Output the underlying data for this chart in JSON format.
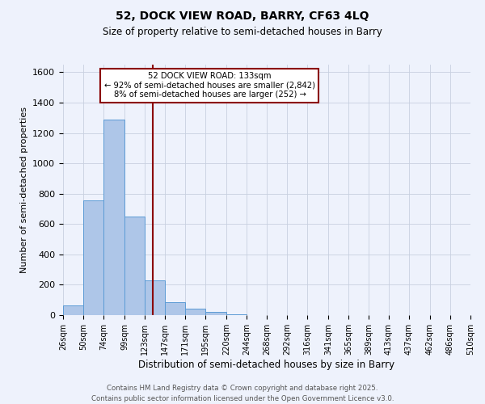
{
  "title": "52, DOCK VIEW ROAD, BARRY, CF63 4LQ",
  "subtitle": "Size of property relative to semi-detached houses in Barry",
  "xlabel": "Distribution of semi-detached houses by size in Barry",
  "ylabel": "Number of semi-detached properties",
  "property_size": 133,
  "property_label": "52 DOCK VIEW ROAD: 133sqm",
  "pct_smaller": 92,
  "count_smaller": 2842,
  "pct_larger": 8,
  "count_larger": 252,
  "bin_edges": [
    26,
    50,
    74,
    99,
    123,
    147,
    171,
    195,
    220,
    244,
    268,
    292,
    316,
    341,
    365,
    389,
    413,
    437,
    462,
    486,
    510
  ],
  "bin_labels": [
    "26sqm",
    "50sqm",
    "74sqm",
    "99sqm",
    "123sqm",
    "147sqm",
    "171sqm",
    "195sqm",
    "220sqm",
    "244sqm",
    "268sqm",
    "292sqm",
    "316sqm",
    "341sqm",
    "365sqm",
    "389sqm",
    "413sqm",
    "437sqm",
    "462sqm",
    "486sqm",
    "510sqm"
  ],
  "counts": [
    65,
    755,
    1290,
    652,
    230,
    85,
    45,
    20,
    5,
    0,
    0,
    0,
    0,
    0,
    0,
    0,
    0,
    0,
    0,
    0
  ],
  "bar_color": "#aec6e8",
  "bar_edge_color": "#5b9bd5",
  "vline_color": "#8b0000",
  "vline_x": 133,
  "box_color": "#8b0000",
  "ylim": [
    0,
    1650
  ],
  "yticks": [
    0,
    200,
    400,
    600,
    800,
    1000,
    1200,
    1400,
    1600
  ],
  "grid_color": "#c8d0e0",
  "bg_color": "#eef2fc",
  "footer_line1": "Contains HM Land Registry data © Crown copyright and database right 2025.",
  "footer_line2": "Contains public sector information licensed under the Open Government Licence v3.0."
}
